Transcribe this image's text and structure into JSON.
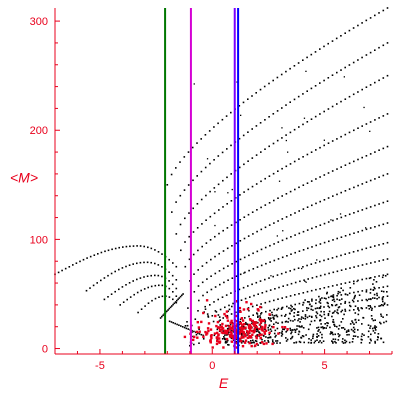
{
  "chart_data": {
    "type": "scatter",
    "title": "",
    "xlabel": "E",
    "ylabel": "<M>",
    "xlim": [
      -7,
      8
    ],
    "ylim": [
      -5,
      312
    ],
    "x_ticks": [
      -5,
      0,
      5
    ],
    "x_tick_labels": [
      "-5",
      "0",
      "5"
    ],
    "y_ticks": [
      0,
      100,
      200,
      300
    ],
    "y_tick_labels": [
      "0",
      "100",
      "200",
      "300"
    ],
    "grid": false,
    "legend": "none",
    "colors": {
      "axis": "#e8001c",
      "black_points": "#000000",
      "red_points": "#e8001c",
      "line_green": "#007700",
      "line_magenta": "#d400d4",
      "line_purple": "#7a00ff",
      "line_blue": "#0000ff"
    },
    "vertical_lines": [
      {
        "x": -2.1,
        "color": "#007700"
      },
      {
        "x": -0.95,
        "color": "#d400d4"
      },
      {
        "x": 1.0,
        "color": "#7a00ff"
      },
      {
        "x": 1.15,
        "color": "#0000ff"
      }
    ],
    "band_curves": [
      {
        "x0": -2.0,
        "y0": 150,
        "x1": 7.8,
        "y1": 312,
        "shape": "concave"
      },
      {
        "x0": -1.8,
        "y0": 125,
        "x1": 7.8,
        "y1": 280,
        "shape": "concave"
      },
      {
        "x0": -1.6,
        "y0": 105,
        "x1": 7.8,
        "y1": 250,
        "shape": "concave"
      },
      {
        "x0": -1.4,
        "y0": 90,
        "x1": 7.8,
        "y1": 215,
        "shape": "concave"
      },
      {
        "x0": -1.2,
        "y0": 75,
        "x1": 7.8,
        "y1": 185,
        "shape": "concave"
      },
      {
        "x0": -1.0,
        "y0": 62,
        "x1": 7.8,
        "y1": 160,
        "shape": "concave"
      },
      {
        "x0": -0.8,
        "y0": 52,
        "x1": 7.8,
        "y1": 135,
        "shape": "concave"
      },
      {
        "x0": -0.6,
        "y0": 44,
        "x1": 7.8,
        "y1": 115,
        "shape": "concave"
      },
      {
        "x0": -0.3,
        "y0": 36,
        "x1": 7.8,
        "y1": 97,
        "shape": "concave"
      },
      {
        "x0": 0.0,
        "y0": 30,
        "x1": 7.8,
        "y1": 82,
        "shape": "concave"
      },
      {
        "x0": 0.3,
        "y0": 25,
        "x1": 7.8,
        "y1": 68,
        "shape": "concave"
      },
      {
        "x0": 0.7,
        "y0": 21,
        "x1": 7.8,
        "y1": 57,
        "shape": "concave"
      },
      {
        "x0": 1.2,
        "y0": 18,
        "x1": 7.8,
        "y1": 48,
        "shape": "concave"
      },
      {
        "x0": 1.8,
        "y0": 16,
        "x1": 7.8,
        "y1": 40,
        "shape": "concave"
      },
      {
        "x0": -2.3,
        "y0": 28,
        "x1": -1.3,
        "y1": 50,
        "shape": "line"
      },
      {
        "x0": -1.9,
        "y0": 25,
        "x1": -0.4,
        "y1": 12,
        "shape": "line"
      }
    ],
    "left_arcs": [
      {
        "x0": -7.0,
        "y0": 68,
        "xpeak": -3.3,
        "ypeak": 94,
        "x1": -1.6,
        "y1": 75
      },
      {
        "x0": -5.6,
        "y0": 53,
        "xpeak": -2.9,
        "ypeak": 79,
        "x1": -1.6,
        "y1": 63
      },
      {
        "x0": -4.8,
        "y0": 45,
        "xpeak": -2.5,
        "ypeak": 67,
        "x1": -1.6,
        "y1": 55
      },
      {
        "x0": -4.1,
        "y0": 40,
        "xpeak": -2.3,
        "ypeak": 58,
        "x1": -1.6,
        "y1": 48
      },
      {
        "x0": -3.3,
        "y0": 33,
        "xpeak": -2.1,
        "ypeak": 48,
        "x1": -1.6,
        "y1": 42
      }
    ],
    "cloud_black": {
      "x_range": [
        0.5,
        7.8
      ],
      "y_range": [
        5,
        70
      ],
      "count": 520
    },
    "cloud_red": {
      "x_center": 1.0,
      "y_center": 15,
      "x_spread": 1.6,
      "y_spread": 10,
      "count": 230
    }
  }
}
